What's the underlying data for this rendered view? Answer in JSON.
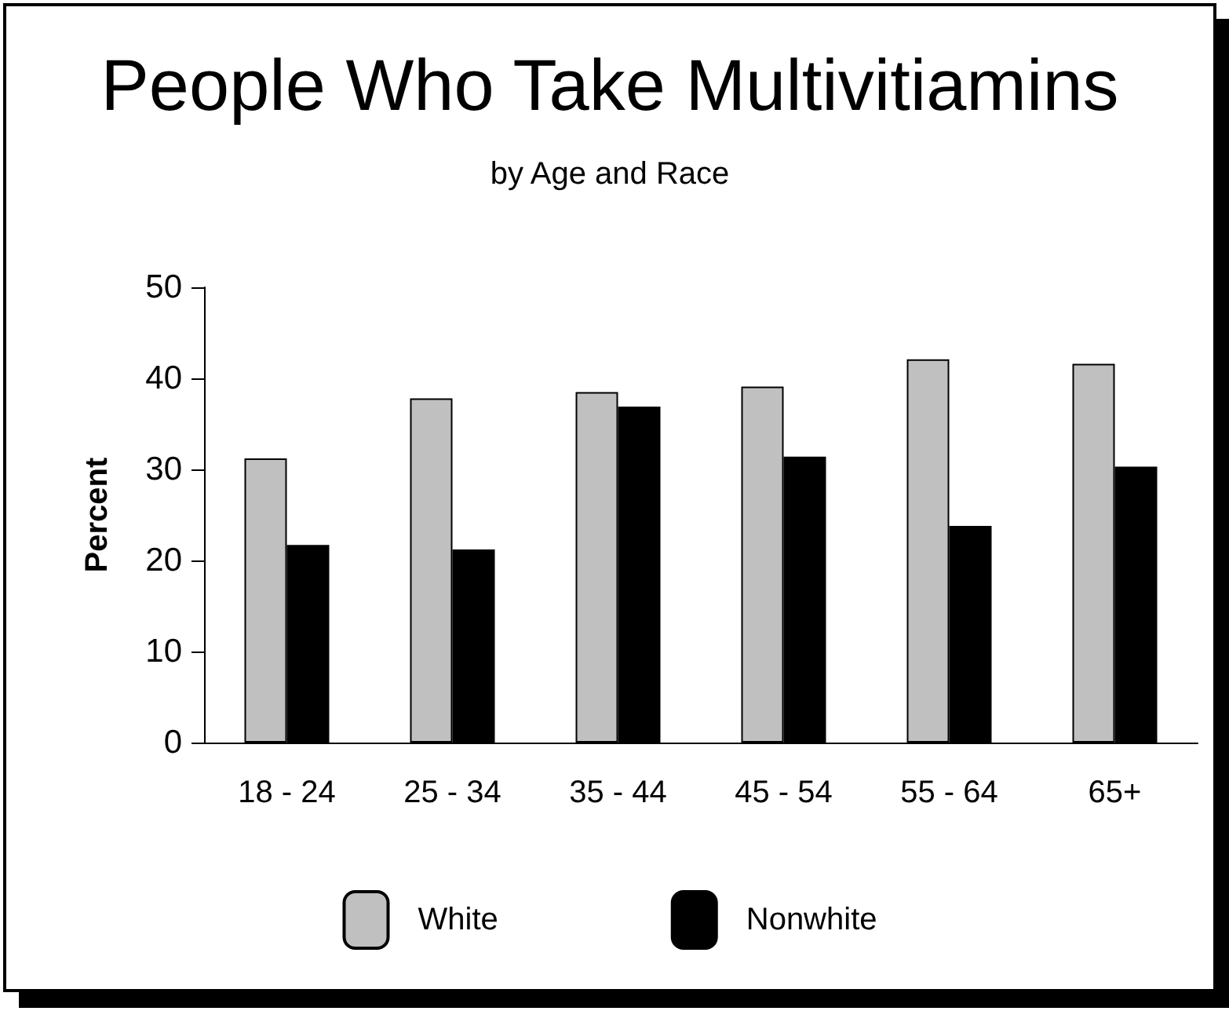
{
  "chart_data": {
    "type": "bar",
    "title": "People Who Take Multivitiamins",
    "subtitle": "by Age and Race",
    "ylabel": "Percent",
    "categories": [
      "18 - 24",
      "25 - 34",
      "35 - 44",
      "45 - 54",
      "55 - 64",
      "65+"
    ],
    "series": [
      {
        "name": "White",
        "color": "#c0c0c0",
        "values": [
          31.2,
          37.8,
          38.5,
          39.1,
          42.1,
          41.6
        ]
      },
      {
        "name": "Nonwhite",
        "color": "#000000",
        "values": [
          21.7,
          21.2,
          36.9,
          31.4,
          23.8,
          30.3
        ]
      }
    ],
    "ylim": [
      0,
      50
    ],
    "yticks": [
      0,
      10,
      20,
      30,
      40,
      50
    ],
    "grid": false,
    "legend": "bottom"
  }
}
